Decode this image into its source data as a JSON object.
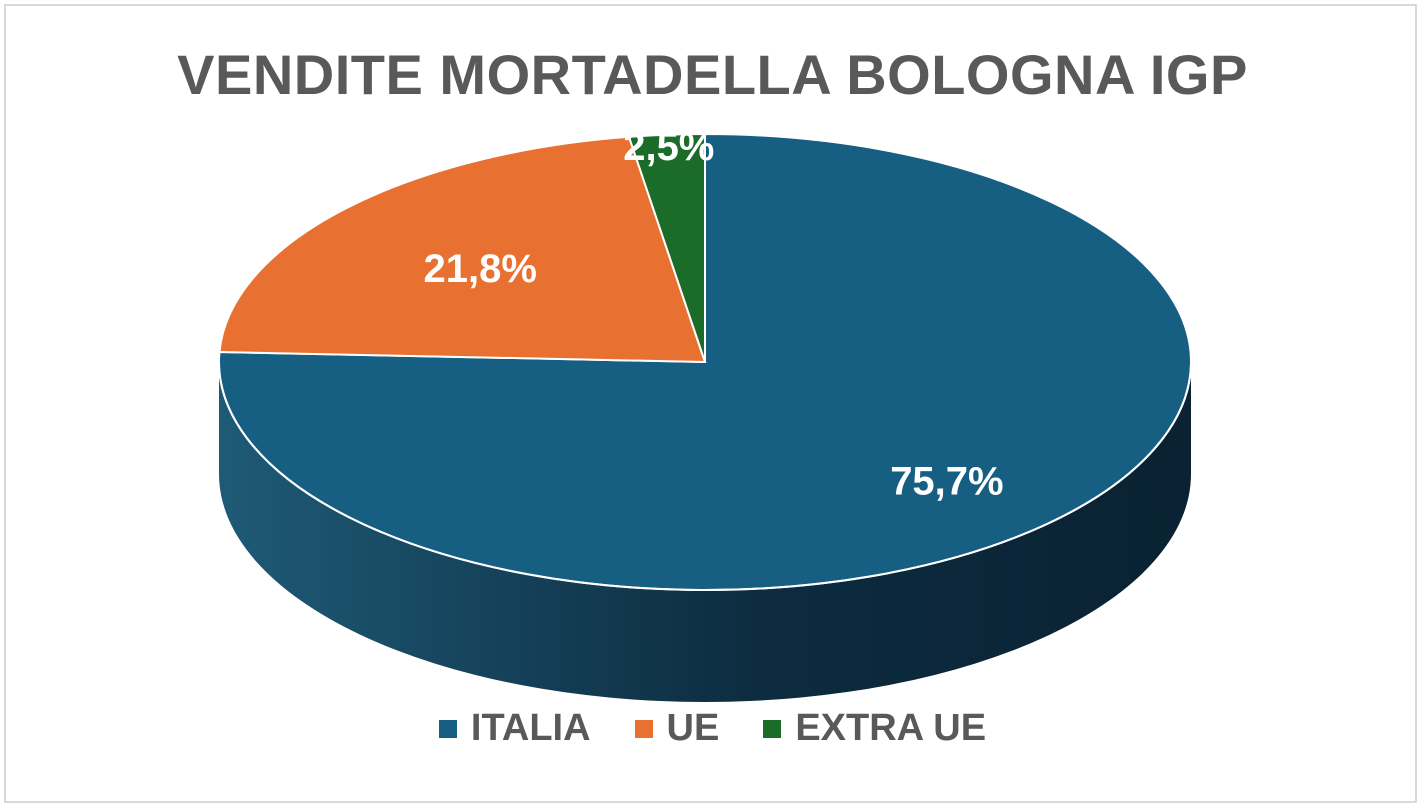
{
  "chart_data": {
    "type": "pie",
    "title": "VENDITE MORTADELLA BOLOGNA IGP",
    "style": "3d",
    "legend_position": "bottom",
    "categories": [
      "ITALIA",
      "UE",
      "EXTRA UE"
    ],
    "values": [
      75.7,
      21.8,
      2.5
    ],
    "labels": [
      "75,7%",
      "21,8%",
      "2,5%"
    ],
    "colors": [
      "#175f82",
      "#e87030",
      "#1b6b29"
    ]
  }
}
